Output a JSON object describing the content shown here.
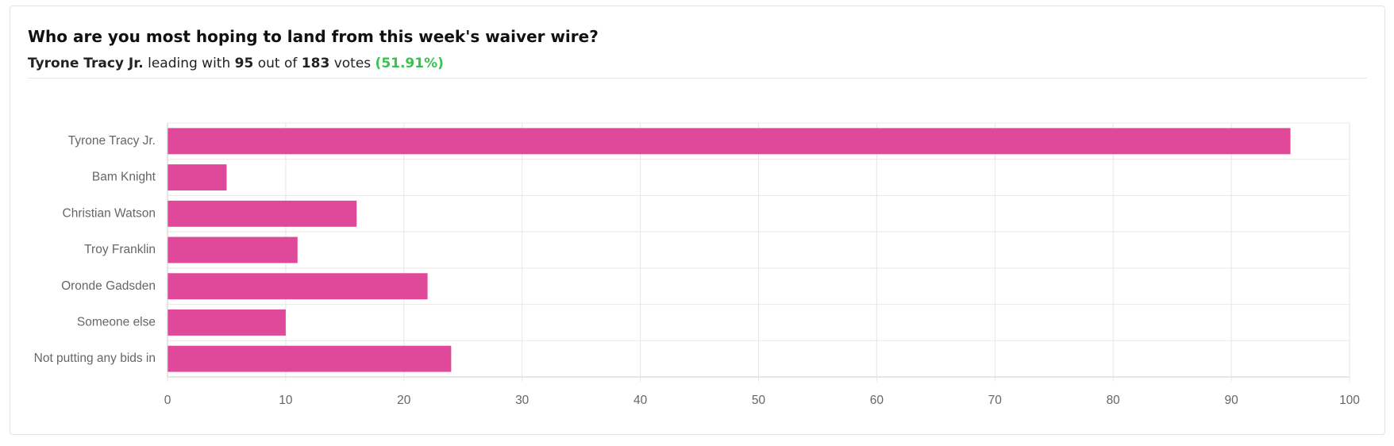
{
  "chart_data": {
    "type": "bar",
    "orientation": "horizontal",
    "title": "Who are you most hoping to land from this week's waiver wire?",
    "subtitle_parts": [
      "leading with",
      "out of",
      "votes"
    ],
    "total_votes": 183,
    "leader_share_label": "(51.91%)",
    "categories": [
      "Tyrone Tracy Jr.",
      "Bam Knight",
      "Christian Watson",
      "Troy Franklin",
      "Oronde Gadsden",
      "Someone else",
      "Not putting any bids in"
    ],
    "values": [
      95,
      5,
      16,
      11,
      22,
      10,
      24
    ],
    "color": "#e0489a",
    "xlim": [
      0,
      100
    ],
    "xticks": [
      0,
      10,
      20,
      30,
      40,
      50,
      60,
      70,
      80,
      90,
      100
    ],
    "grid": true
  }
}
